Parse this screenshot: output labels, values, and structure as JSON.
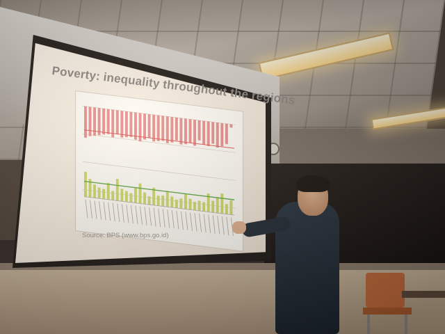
{
  "slide": {
    "title": "Poverty: inequality throughout the regions",
    "source": "Source: BPS (www.bps.go.id)"
  },
  "chart": {
    "top_values": [
      7.5,
      7,
      6.8,
      6.5,
      6.2,
      6,
      6.6,
      5.8,
      6.4,
      6.2,
      6,
      6.5,
      6.8,
      6.2,
      5.7,
      6.4,
      6.2,
      6,
      6.4,
      6.1,
      5.5,
      6.3,
      6.1,
      5.6,
      6.2,
      4.8,
      5.7,
      5.9,
      5.2,
      6,
      5.5,
      4.9,
      0.8
    ],
    "bottom_values": [
      3,
      2.2,
      1.6,
      1.3,
      1.2,
      2,
      1.1,
      2.6,
      1.5,
      1.3,
      1.1,
      1.8,
      2.4,
      1.4,
      1,
      2.1,
      1.2,
      1.3,
      1.9,
      1.3,
      1,
      1.2,
      1.8,
      1.3,
      1,
      1.2,
      1.1,
      2.2,
      1.4,
      1.9,
      2.4,
      1.2,
      1.7
    ],
    "colors": {
      "top": "#e78f8f",
      "bottom": "#cfd96a",
      "line_green": "#5fa846",
      "line_red": "#e05656"
    }
  },
  "colors": {
    "slide_bg": "#f6ece0",
    "title": "#8a8582",
    "source": "#9a948f"
  }
}
